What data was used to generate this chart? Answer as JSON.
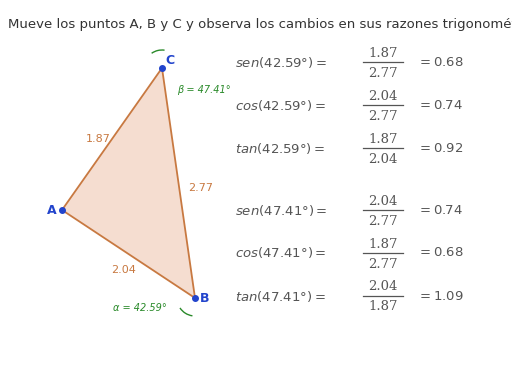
{
  "title": "Mueve los puntos A, B y C y observa los cambios en sus razones trigonométricas.",
  "title_fontsize": 9.5,
  "bg_color": "#ffffff",
  "triangle_fill": "#f5ddd0",
  "triangle_edge": "#c87941",
  "point_color": "#2244cc",
  "point_size": 4,
  "side_label_color": "#c87941",
  "angle_label_color": "#2a8a2a",
  "vertex_label_color": "#2244cc",
  "formula_color": "#555555",
  "formula_fontsize": 9.5,
  "formulas": [
    {
      "num": "1.87",
      "den": "2.77",
      "func": "sen",
      "angle": "42.59",
      "result": "0.68",
      "row": 0
    },
    {
      "num": "2.04",
      "den": "2.77",
      "func": "cos",
      "angle": "42.59",
      "result": "0.74",
      "row": 1
    },
    {
      "num": "1.87",
      "den": "2.04",
      "func": "tan",
      "angle": "42.59",
      "result": "0.92",
      "row": 2
    },
    {
      "num": "2.04",
      "den": "2.77",
      "func": "sen",
      "angle": "47.41",
      "result": "0.74",
      "row": 3
    },
    {
      "num": "1.87",
      "den": "2.77",
      "func": "cos",
      "angle": "47.41",
      "result": "0.68",
      "row": 4
    },
    {
      "num": "2.04",
      "den": "1.87",
      "func": "tan",
      "angle": "47.41",
      "result": "1.09",
      "row": 5
    }
  ]
}
